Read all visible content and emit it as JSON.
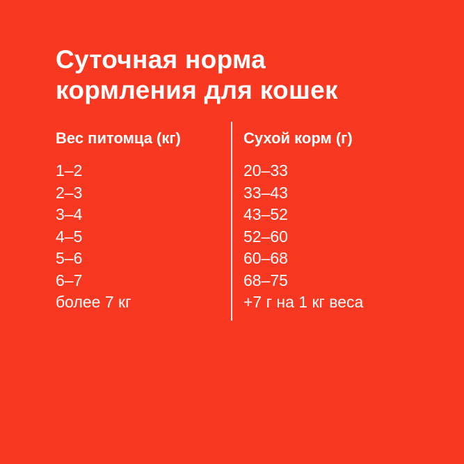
{
  "title": {
    "line1": "Суточная норма",
    "line2": "кормления для кошек"
  },
  "colors": {
    "background": "#F93822",
    "text": "#FFFFFF"
  },
  "table": {
    "headers": [
      "Вес питомца (кг)",
      "Сухой корм (г)"
    ],
    "weight": [
      "1–2",
      "2–3",
      "3–4",
      "4–5",
      "5–6",
      "6–7",
      "более 7 кг"
    ],
    "dry_food": [
      "20–33",
      "33–43",
      "43–52",
      "52–60",
      "60–68",
      "68–75",
      "+7 г на 1 кг веса"
    ]
  }
}
